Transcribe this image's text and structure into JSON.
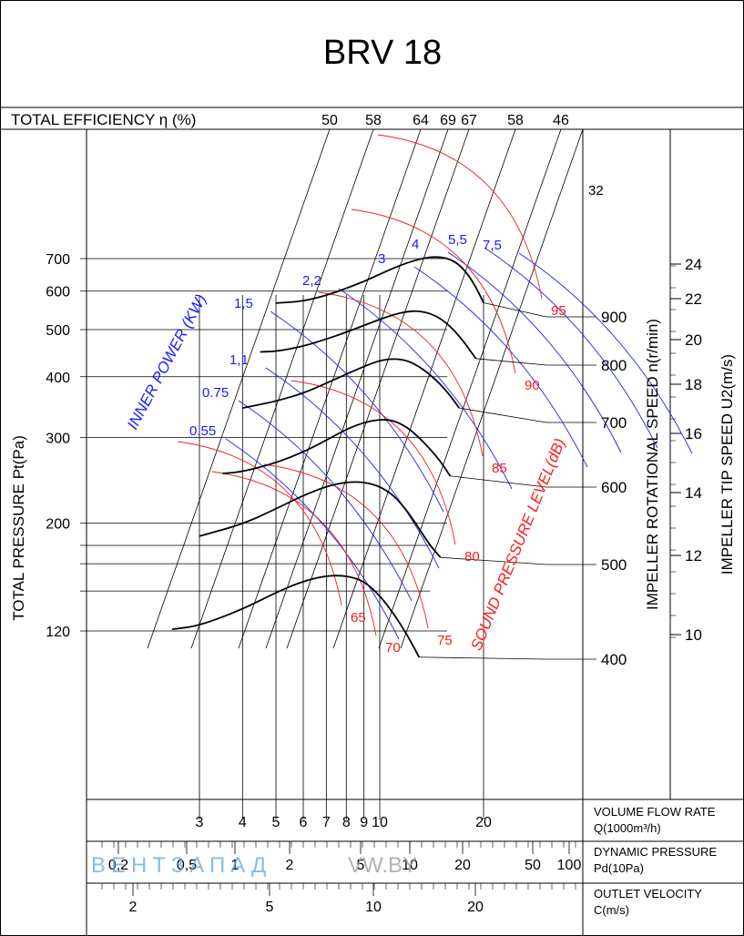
{
  "chart_data": {
    "type": "line",
    "title": "BRV 18",
    "efficiency": {
      "label": "TOTAL EFFICIENCY η (%)",
      "values": [
        "50",
        "58",
        "64",
        "69",
        "67",
        "58",
        "46"
      ]
    },
    "y_left": {
      "label": "TOTAL PRESSURE Pt(Pa)",
      "ticks": [
        "700",
        "600",
        "500",
        "400",
        "300",
        "200",
        "120"
      ],
      "scale": "log"
    },
    "rpm_axis": {
      "label": "IMPELLER ROTATIONAL SPEED n(r/min)",
      "ticks": [
        "900",
        "800",
        "700",
        "600",
        "500",
        "400"
      ]
    },
    "tip_speed_axis": {
      "label": "IMPELLER TIP SPEED U2(m/s)",
      "ticks": [
        "24",
        "22",
        "20",
        "18",
        "16",
        "14",
        "12",
        "10"
      ]
    },
    "power": {
      "label": "INNER POWER (KW)",
      "values": [
        "0.55",
        "0.75",
        "1,1",
        "1,5",
        "2,2",
        "3",
        "4",
        "5,5",
        "7,5"
      ]
    },
    "sound": {
      "label": "SOUND PRESSURE LEVEL(dB)",
      "values": [
        "65",
        "70",
        "75",
        "80",
        "85",
        "90",
        "95"
      ]
    },
    "extra_label": "32",
    "x_flow": {
      "label": "VOLUME FLOW RATE",
      "unit": "Q(1000m³/h)",
      "ticks": [
        "3",
        "4",
        "5",
        "6",
        "7",
        "8",
        "9",
        "10",
        "20"
      ],
      "scale": "log"
    },
    "x_dyn": {
      "label": "DYNAMIC PRESSURE",
      "unit": "Pd(10Pa)",
      "ticks": [
        "0,2",
        "0,5",
        "1",
        "2",
        "5",
        "10",
        "20",
        "50",
        "100"
      ]
    },
    "x_vel": {
      "label": "OUTLET VELOCITY",
      "unit": "C(m/s)",
      "ticks": [
        "2",
        "5",
        "10",
        "20"
      ]
    },
    "watermark": {
      "left": "ВЕНТЗАПАД",
      "right": "VW.BY"
    },
    "series": [
      {
        "rpm": 400,
        "values": [
          [
            2.5,
            121
          ],
          [
            3,
            123
          ],
          [
            4,
            133
          ],
          [
            5,
            144
          ],
          [
            6,
            152
          ],
          [
            7,
            156
          ],
          [
            8,
            156
          ],
          [
            9,
            152
          ],
          [
            10,
            142
          ],
          [
            11,
            130
          ],
          [
            12,
            118
          ],
          [
            13,
            106
          ]
        ]
      },
      {
        "rpm": 500,
        "values": [
          [
            3,
            188
          ],
          [
            4,
            199
          ],
          [
            5,
            214
          ],
          [
            6,
            228
          ],
          [
            7,
            238
          ],
          [
            8,
            243
          ],
          [
            9,
            243
          ],
          [
            10,
            238
          ],
          [
            11,
            228
          ],
          [
            12,
            212
          ],
          [
            13,
            195
          ],
          [
            14,
            180
          ],
          [
            15,
            170
          ]
        ]
      },
      {
        "rpm": 600,
        "values": [
          [
            3.5,
            253
          ],
          [
            4,
            255
          ],
          [
            5,
            266
          ],
          [
            6,
            280
          ],
          [
            7,
            296
          ],
          [
            8,
            312
          ],
          [
            9,
            322
          ],
          [
            10,
            327
          ],
          [
            11,
            325
          ],
          [
            12,
            315
          ],
          [
            13,
            300
          ],
          [
            14,
            284
          ],
          [
            15,
            268
          ],
          [
            16,
            250
          ]
        ]
      },
      {
        "rpm": 700,
        "values": [
          [
            4,
            345
          ],
          [
            5,
            356
          ],
          [
            6,
            370
          ],
          [
            7,
            388
          ],
          [
            8,
            405
          ],
          [
            9,
            420
          ],
          [
            10,
            432
          ],
          [
            11,
            436
          ],
          [
            12,
            432
          ],
          [
            13,
            420
          ],
          [
            14,
            404
          ],
          [
            15,
            386
          ],
          [
            16,
            366
          ],
          [
            17,
            345
          ]
        ]
      },
      {
        "rpm": 800,
        "values": [
          [
            4.5,
            450
          ],
          [
            5,
            451
          ],
          [
            6,
            462
          ],
          [
            7,
            478
          ],
          [
            8,
            494
          ],
          [
            9,
            510
          ],
          [
            10,
            525
          ],
          [
            11,
            537
          ],
          [
            12,
            545
          ],
          [
            13,
            546
          ],
          [
            14,
            540
          ],
          [
            15,
            527
          ],
          [
            16,
            508
          ],
          [
            17,
            485
          ],
          [
            18,
            460
          ],
          [
            19,
            436
          ]
        ]
      },
      {
        "rpm": 900,
        "values": [
          [
            5,
            567
          ],
          [
            6,
            572
          ],
          [
            7,
            588
          ],
          [
            8,
            608
          ],
          [
            9,
            628
          ],
          [
            10,
            650
          ],
          [
            11,
            670
          ],
          [
            12,
            686
          ],
          [
            13,
            698
          ],
          [
            14,
            705
          ],
          [
            15,
            705
          ],
          [
            16,
            698
          ],
          [
            17,
            680
          ],
          [
            18,
            650
          ],
          [
            19,
            612
          ],
          [
            20,
            568
          ]
        ]
      }
    ]
  }
}
